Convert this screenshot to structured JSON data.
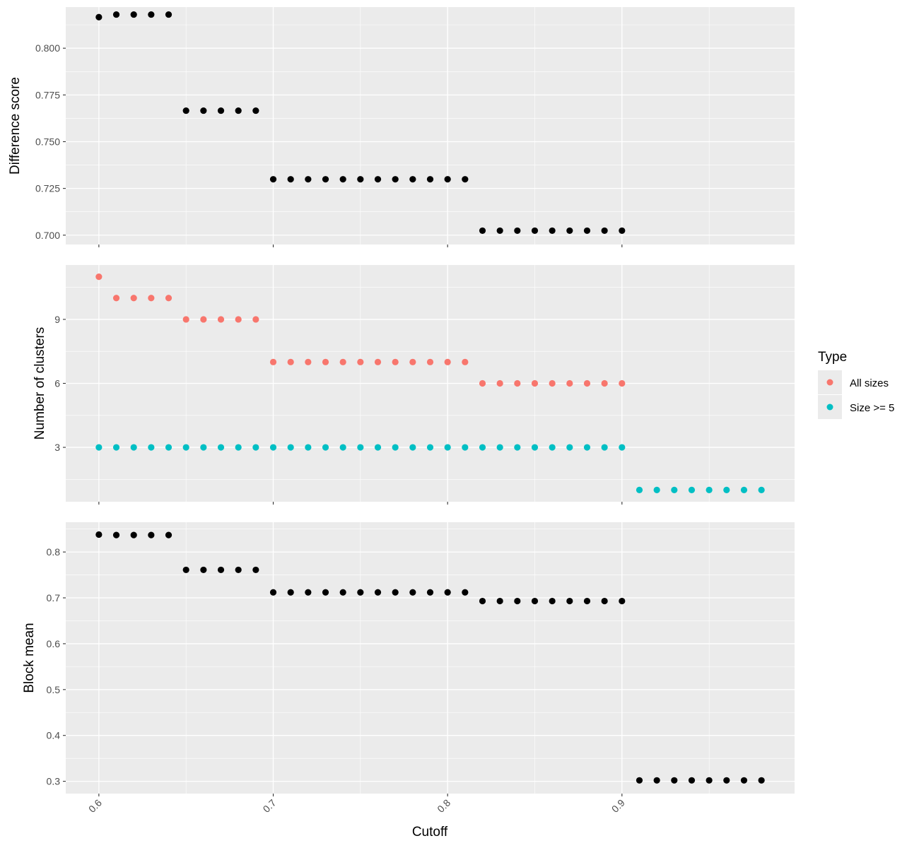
{
  "chart_data": [
    {
      "type": "scatter",
      "ylabel": "Difference score",
      "ylim": [
        0.695,
        0.822
      ],
      "y_ticks": [
        0.7,
        0.725,
        0.75,
        0.775,
        0.8
      ],
      "y_tick_labels": [
        "0.700",
        "0.725",
        "0.750",
        "0.775",
        "0.800"
      ],
      "grid": true,
      "series": [
        {
          "color": "#000000",
          "x": [
            0.6,
            0.61,
            0.62,
            0.63,
            0.64,
            0.65,
            0.66,
            0.67,
            0.68,
            0.69,
            0.7,
            0.71,
            0.72,
            0.73,
            0.74,
            0.75,
            0.76,
            0.77,
            0.78,
            0.79,
            0.8,
            0.81,
            0.82,
            0.83,
            0.84,
            0.85,
            0.86,
            0.87,
            0.88,
            0.89,
            0.9
          ],
          "y": [
            0.8166,
            0.818,
            0.818,
            0.818,
            0.818,
            0.7666,
            0.7666,
            0.7666,
            0.7666,
            0.7666,
            0.7299,
            0.7299,
            0.7299,
            0.7299,
            0.7299,
            0.7299,
            0.7299,
            0.7299,
            0.7299,
            0.7299,
            0.7299,
            0.7299,
            0.7024,
            0.7024,
            0.7024,
            0.7024,
            0.7024,
            0.7024,
            0.7024,
            0.7024,
            0.7024
          ]
        }
      ]
    },
    {
      "type": "scatter",
      "ylabel": "Number of clusters",
      "ylim": [
        0.45,
        11.55
      ],
      "y_ticks": [
        3,
        6,
        9
      ],
      "y_tick_labels": [
        "3",
        "6",
        "9"
      ],
      "grid": true,
      "legend": {
        "title": "Type",
        "position": "right",
        "entries": [
          "All sizes",
          "Size >= 5"
        ]
      },
      "series": [
        {
          "name": "All sizes",
          "color": "#F8766D",
          "x": [
            0.6,
            0.61,
            0.62,
            0.63,
            0.64,
            0.65,
            0.66,
            0.67,
            0.68,
            0.69,
            0.7,
            0.71,
            0.72,
            0.73,
            0.74,
            0.75,
            0.76,
            0.77,
            0.78,
            0.79,
            0.8,
            0.81,
            0.82,
            0.83,
            0.84,
            0.85,
            0.86,
            0.87,
            0.88,
            0.89,
            0.9
          ],
          "y": [
            11,
            10,
            10,
            10,
            10,
            9,
            9,
            9,
            9,
            9,
            7,
            7,
            7,
            7,
            7,
            7,
            7,
            7,
            7,
            7,
            7,
            7,
            6,
            6,
            6,
            6,
            6,
            6,
            6,
            6,
            6
          ]
        },
        {
          "name": "Size >= 5",
          "color": "#00BFC4",
          "x": [
            0.6,
            0.61,
            0.62,
            0.63,
            0.64,
            0.65,
            0.66,
            0.67,
            0.68,
            0.69,
            0.7,
            0.71,
            0.72,
            0.73,
            0.74,
            0.75,
            0.76,
            0.77,
            0.78,
            0.79,
            0.8,
            0.81,
            0.82,
            0.83,
            0.84,
            0.85,
            0.86,
            0.87,
            0.88,
            0.89,
            0.9,
            0.91,
            0.92,
            0.93,
            0.94,
            0.95,
            0.96,
            0.97,
            0.98
          ],
          "y": [
            3,
            3,
            3,
            3,
            3,
            3,
            3,
            3,
            3,
            3,
            3,
            3,
            3,
            3,
            3,
            3,
            3,
            3,
            3,
            3,
            3,
            3,
            3,
            3,
            3,
            3,
            3,
            3,
            3,
            3,
            3,
            1,
            1,
            1,
            1,
            1,
            1,
            1,
            1
          ]
        }
      ]
    },
    {
      "type": "scatter",
      "ylabel": "Block mean",
      "xlabel": "Cutoff",
      "ylim": [
        0.2732,
        0.8649
      ],
      "y_ticks": [
        0.3,
        0.4,
        0.5,
        0.6,
        0.7,
        0.8
      ],
      "y_tick_labels": [
        "0.3",
        "0.4",
        "0.5",
        "0.6",
        "0.7",
        "0.8"
      ],
      "grid": true,
      "series": [
        {
          "color": "#000000",
          "x": [
            0.6,
            0.61,
            0.62,
            0.63,
            0.64,
            0.65,
            0.66,
            0.67,
            0.68,
            0.69,
            0.7,
            0.71,
            0.72,
            0.73,
            0.74,
            0.75,
            0.76,
            0.77,
            0.78,
            0.79,
            0.8,
            0.81,
            0.82,
            0.83,
            0.84,
            0.85,
            0.86,
            0.87,
            0.88,
            0.89,
            0.9,
            0.91,
            0.92,
            0.93,
            0.94,
            0.95,
            0.96,
            0.97,
            0.98
          ],
          "y": [
            0.838,
            0.837,
            0.837,
            0.837,
            0.837,
            0.761,
            0.761,
            0.761,
            0.761,
            0.761,
            0.712,
            0.712,
            0.712,
            0.712,
            0.712,
            0.712,
            0.712,
            0.712,
            0.712,
            0.712,
            0.712,
            0.712,
            0.693,
            0.693,
            0.693,
            0.693,
            0.693,
            0.693,
            0.693,
            0.693,
            0.693,
            0.302,
            0.302,
            0.302,
            0.302,
            0.302,
            0.302,
            0.302,
            0.302
          ]
        }
      ]
    }
  ],
  "x_axis": {
    "title": "Cutoff",
    "xlim": [
      0.581,
      0.999
    ],
    "ticks": [
      0.6,
      0.7,
      0.8,
      0.9
    ],
    "tick_labels": [
      "0.6",
      "0.7",
      "0.8",
      "0.9"
    ]
  },
  "colors": {
    "panel_background": "#EBEBEB",
    "grid": "#FFFFFF",
    "all_sizes": "#F8766D",
    "size_ge_5": "#00BFC4"
  }
}
